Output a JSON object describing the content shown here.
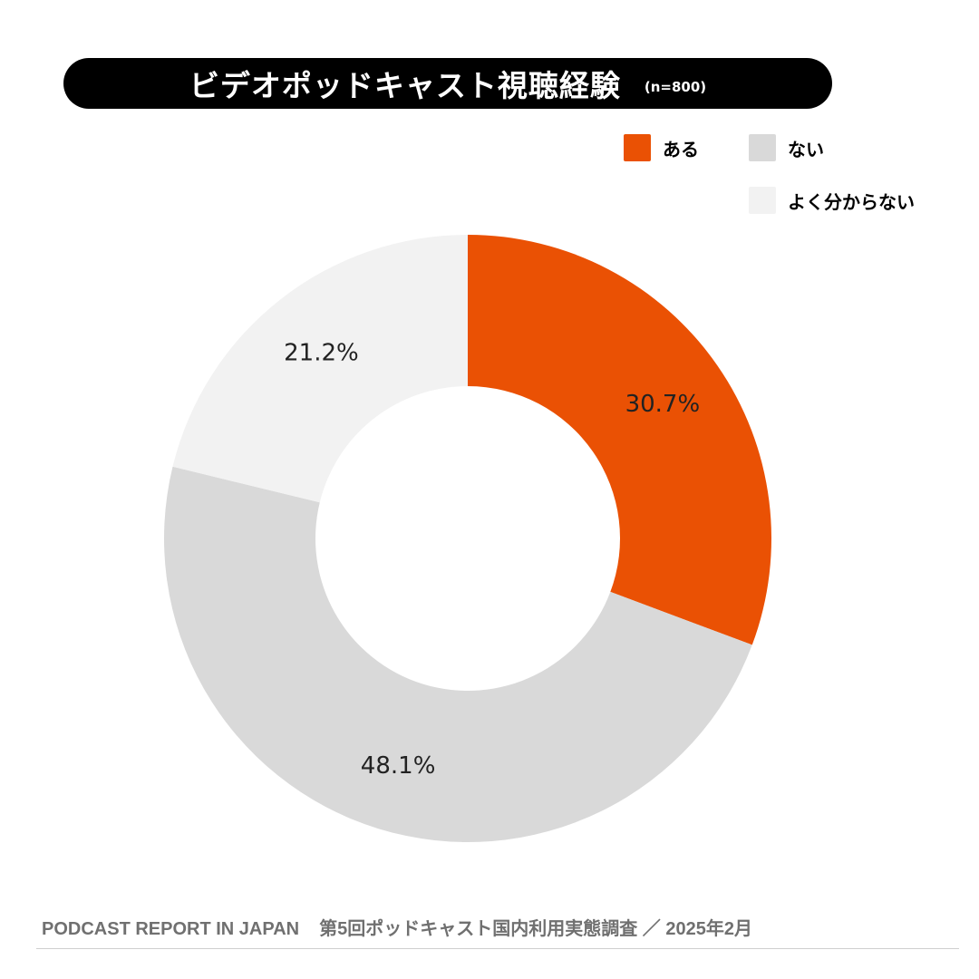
{
  "header": {
    "title": "ビデオポッドキャスト視聴経験",
    "sample": "(n=800)"
  },
  "legend": [
    {
      "label": "ある",
      "color": "#EA5104"
    },
    {
      "label": "ない",
      "color": "#D9D9D9"
    },
    {
      "label": "よく分からない",
      "color": "#F2F2F2"
    }
  ],
  "chart_data": {
    "type": "pie",
    "donut": true,
    "title": "ビデオポッドキャスト視聴経験",
    "subtitle": "(n=800)",
    "legend_position": "top-right",
    "categories": [
      "ある",
      "ない",
      "よく分からない"
    ],
    "values": [
      30.7,
      48.1,
      21.2
    ],
    "data_labels": [
      "30.7%",
      "48.1%",
      "21.2%"
    ],
    "colors": [
      "#EA5104",
      "#D9D9D9",
      "#F2F2F2"
    ],
    "start_angle": "12 o'clock, clockwise"
  },
  "footer": {
    "left": "PODCAST REPORT IN JAPAN",
    "right": "第5回ポッドキャスト国内利用実態調査 ／ 2025年2月"
  }
}
